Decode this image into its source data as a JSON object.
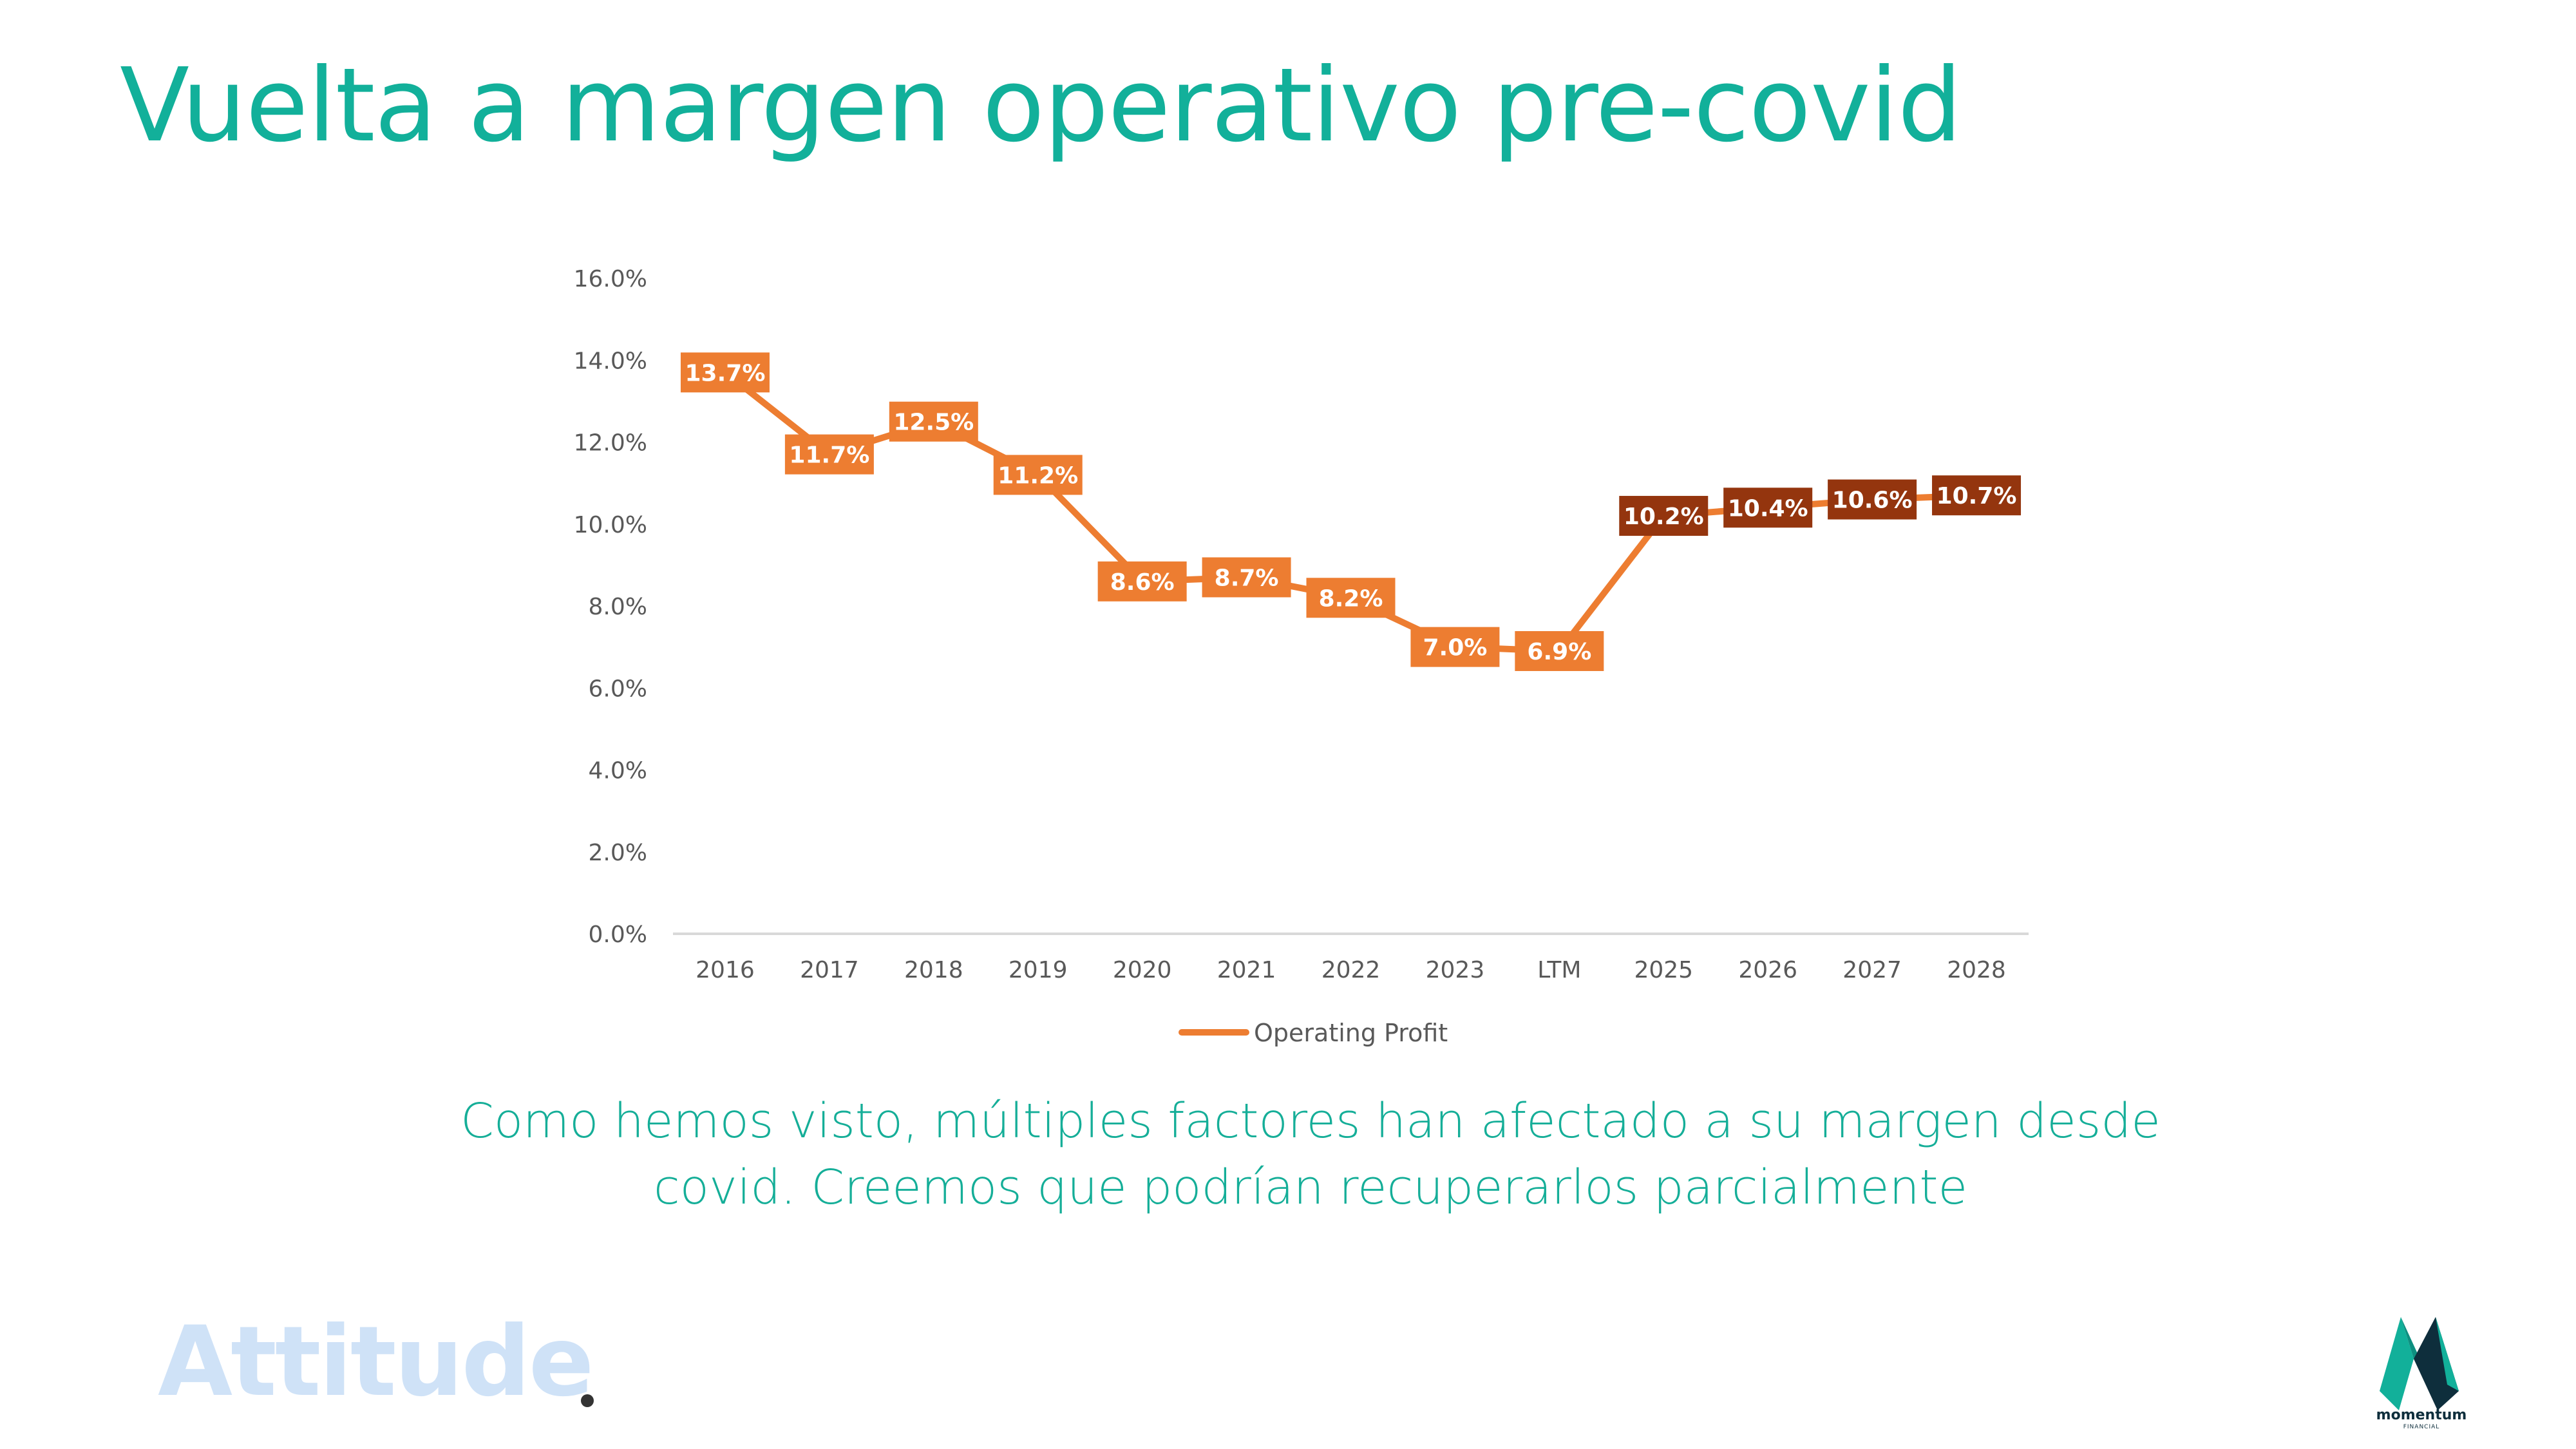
{
  "page": {
    "title": "Vuelta a margen operativo pre-covid",
    "caption": "Como hemos visto, múltiples factores han afectado a su margen desde covid. Creemos que podrían recuperarlos parcialmente",
    "brand_left": "Attitude",
    "brand_right": "momentum",
    "brand_right_sub": "FINANCIAL"
  },
  "colors": {
    "title": "#12B09A",
    "caption": "#15AE98",
    "line": "#ED7D31",
    "historic_label": "#ED7D31",
    "forecast_label": "#94350E",
    "axis": "#D9D9D9",
    "brand_left": "#CFE2F7",
    "brand_dot": "#333333",
    "logo_teal": "#12B09A",
    "logo_dark": "#0E2E3C"
  },
  "chart_data": {
    "type": "line",
    "title": "",
    "xlabel": "",
    "ylabel": "",
    "categories": [
      "2016",
      "2017",
      "2018",
      "2019",
      "2020",
      "2021",
      "2022",
      "2023",
      "LTM",
      "2025",
      "2026",
      "2027",
      "2028"
    ],
    "ylim": [
      0,
      16
    ],
    "yticks": [
      0,
      2,
      4,
      6,
      8,
      10,
      12,
      14,
      16
    ],
    "ytick_labels": [
      "0.0%",
      "2.0%",
      "4.0%",
      "6.0%",
      "8.0%",
      "10.0%",
      "12.0%",
      "14.0%",
      "16.0%"
    ],
    "series": [
      {
        "name": "Operating Profit",
        "values": [
          13.7,
          11.7,
          12.5,
          11.2,
          8.6,
          8.7,
          8.2,
          7.0,
          6.9,
          10.2,
          10.4,
          10.6,
          10.7
        ],
        "labels": [
          "13.7%",
          "11.7%",
          "12.5%",
          "11.2%",
          "8.6%",
          "8.7%",
          "8.2%",
          "7.0%",
          "6.9%",
          "10.2%",
          "10.4%",
          "10.6%",
          "10.7%"
        ],
        "forecast": [
          false,
          false,
          false,
          false,
          false,
          false,
          false,
          false,
          false,
          true,
          true,
          true,
          true
        ]
      }
    ],
    "grid": false,
    "legend": "bottom"
  }
}
